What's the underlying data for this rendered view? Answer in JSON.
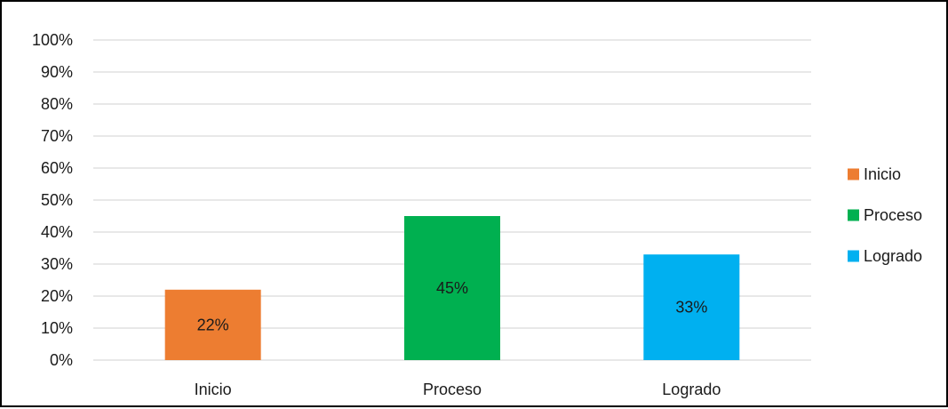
{
  "chart_data": {
    "type": "bar",
    "categories": [
      "Inicio",
      "Proceso",
      "Logrado"
    ],
    "values": [
      22,
      45,
      33
    ],
    "data_labels": [
      "22%",
      "45%",
      "33%"
    ],
    "colors": [
      "#ED7D31",
      "#00B050",
      "#00B0F0"
    ],
    "legend": [
      "Inicio",
      "Proceso",
      "Logrado"
    ],
    "legend_position": "right",
    "ylim": [
      0,
      100
    ],
    "yticks": [
      "0%",
      "10%",
      "20%",
      "30%",
      "40%",
      "50%",
      "60%",
      "70%",
      "80%",
      "90%",
      "100%"
    ],
    "grid": true,
    "gridline_color": "#d9d9d9"
  }
}
